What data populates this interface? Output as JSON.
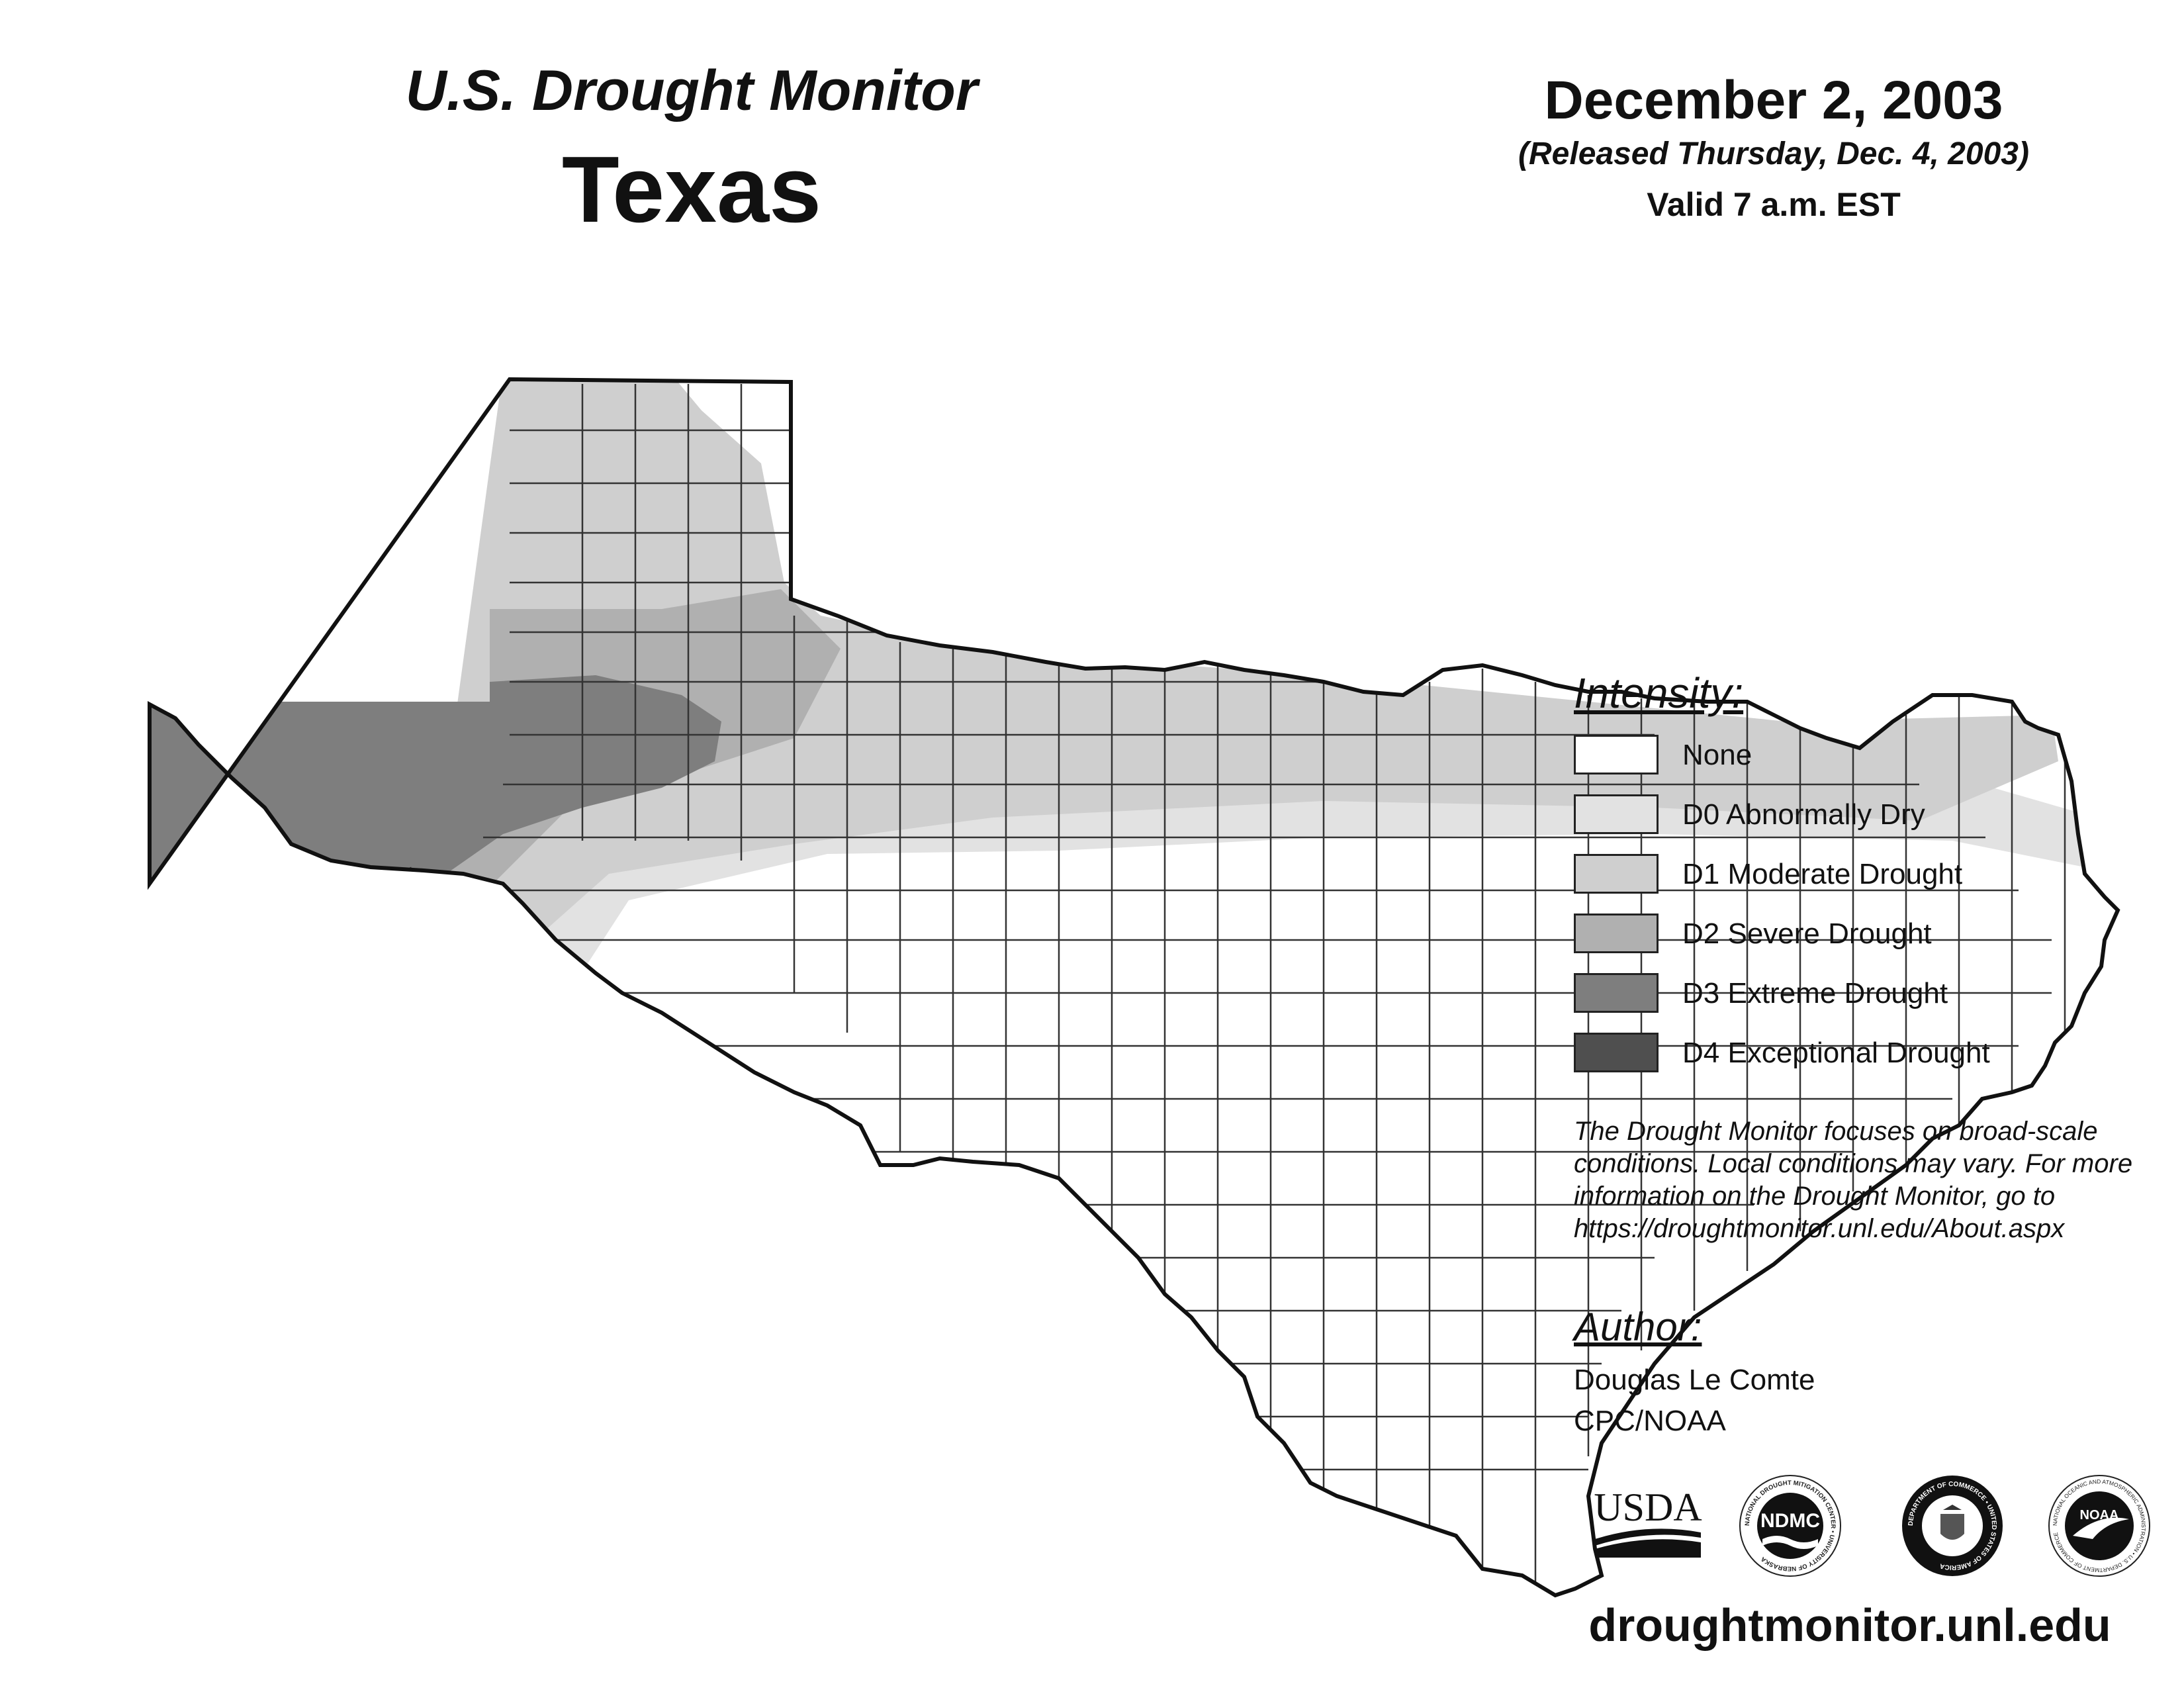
{
  "header": {
    "title": "U.S. Drought Monitor",
    "state": "Texas",
    "date": "December 2, 2003",
    "released": "(Released Thursday, Dec. 4, 2003)",
    "valid": "Valid 7 a.m. EST"
  },
  "legend": {
    "heading": "Intensity:",
    "items": [
      {
        "label": "None",
        "color": "#ffffff"
      },
      {
        "label": "D0 Abnormally Dry",
        "color": "#e2e2e2"
      },
      {
        "label": "D1 Moderate Drought",
        "color": "#cfcfcf"
      },
      {
        "label": "D2 Severe Drought",
        "color": "#b0b0b0"
      },
      {
        "label": "D3 Extreme Drought",
        "color": "#7e7e7e"
      },
      {
        "label": "D4 Exceptional Drought",
        "color": "#4f4f4f"
      }
    ]
  },
  "note": {
    "lines": [
      "The Drought Monitor focuses on broad-scale",
      "conditions. Local conditions may vary. For more",
      "information on the Drought Monitor, go to",
      "https://droughtmonitor.unl.edu/About.aspx"
    ]
  },
  "author": {
    "heading": "Author:",
    "name": "Douglas Le Comte",
    "org": "CPC/NOAA"
  },
  "logos": {
    "usda": "USDA",
    "ndmc": "NDMC",
    "noaa": "NOAA",
    "ndmc_ring_text": "NATIONAL DROUGHT MITIGATION CENTER • UNIVERSITY OF NEBRASKA",
    "doc_ring_text": "DEPARTMENT OF COMMERCE • UNITED STATES OF AMERICA",
    "noaa_ring_text": "NATIONAL OCEANIC AND ATMOSPHERIC ADMINISTRATION • U.S. DEPARTMENT OF COMMERCE"
  },
  "footer": {
    "website": "droughtmonitor.unl.edu"
  }
}
